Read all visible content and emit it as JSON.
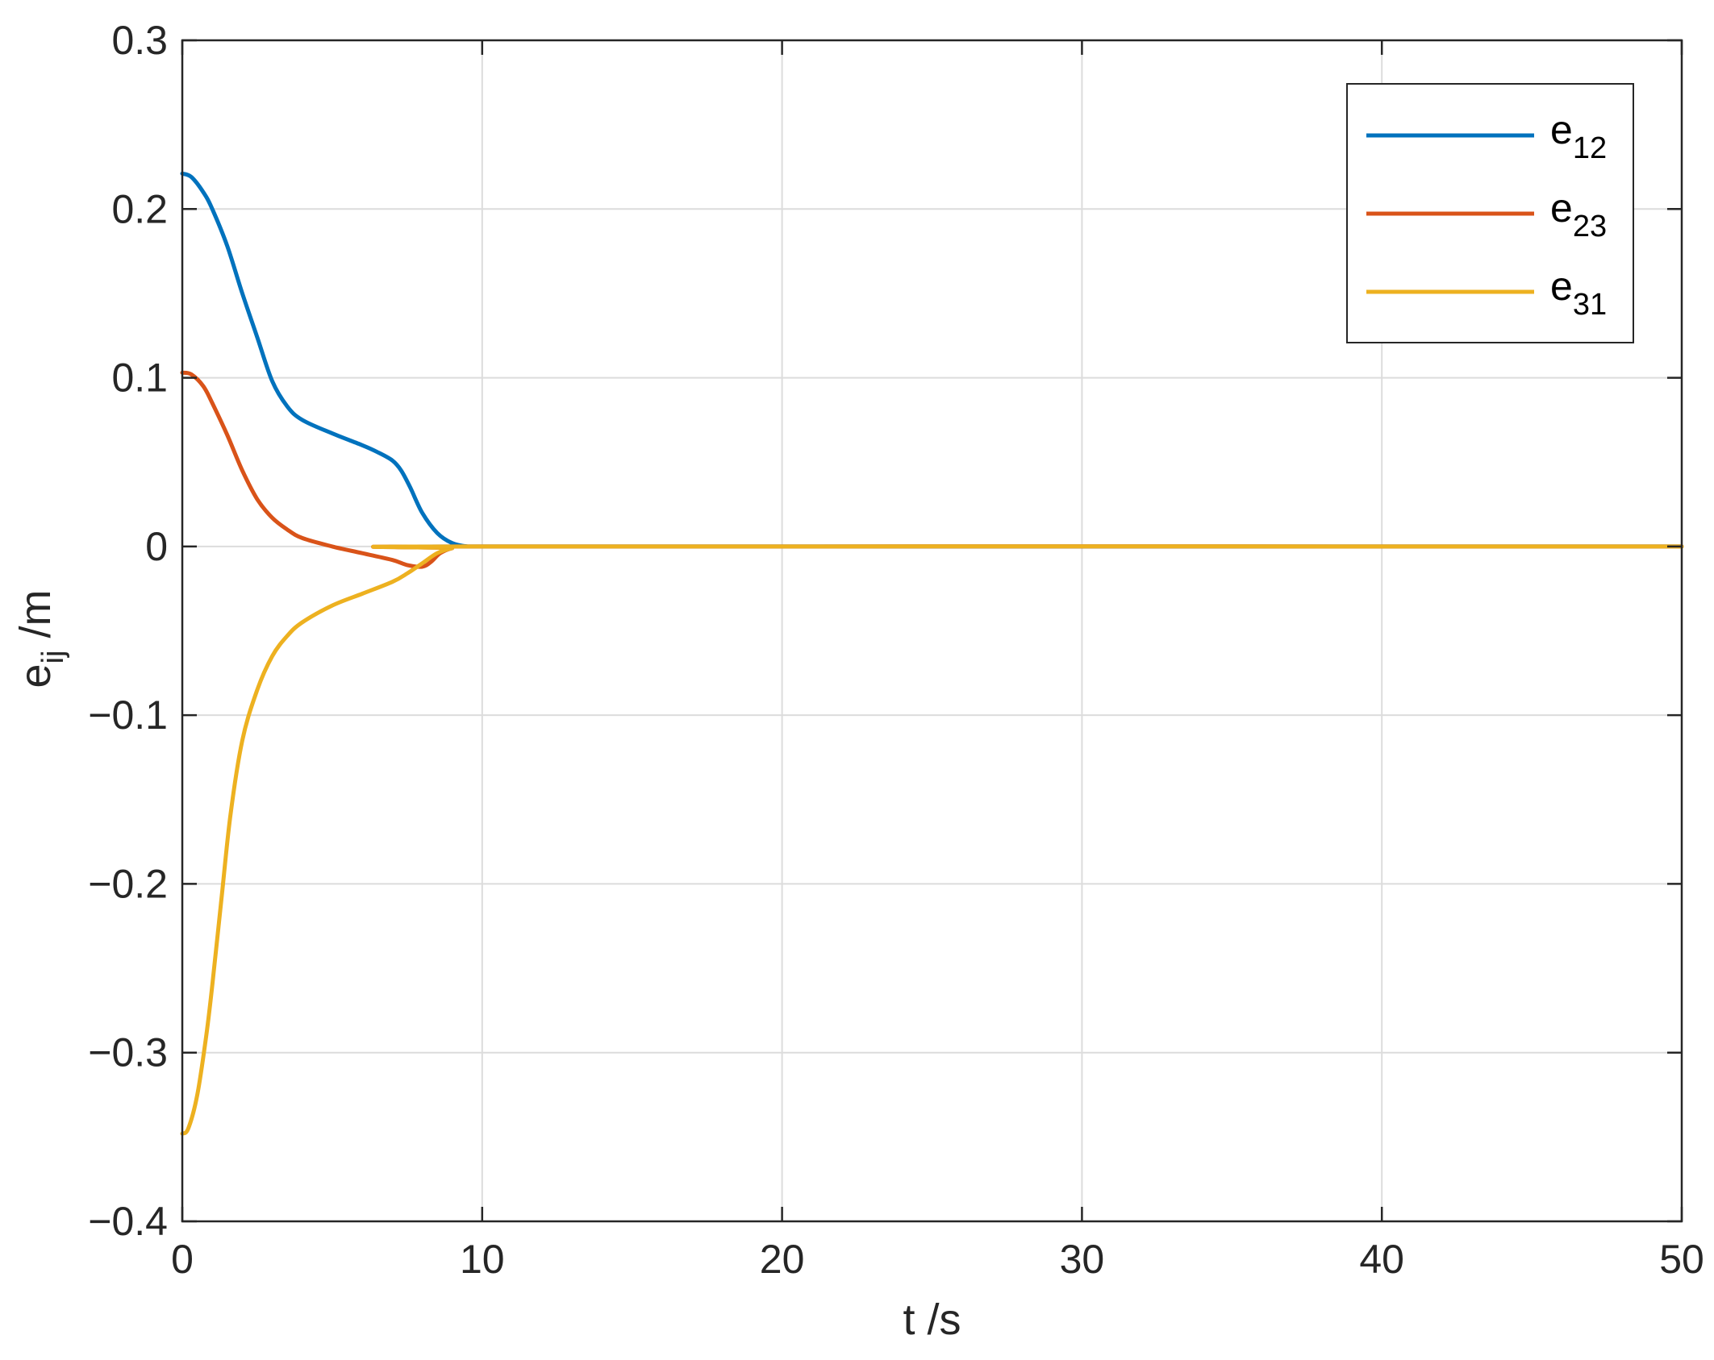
{
  "chart_data": {
    "type": "line",
    "xlabel": "t /s",
    "ylabel": {
      "base": "e",
      "sub": "ij",
      "unit": " /m"
    },
    "xlim": [
      0,
      50
    ],
    "ylim": [
      -0.4,
      0.3
    ],
    "xticks": [
      0,
      10,
      20,
      30,
      40,
      50
    ],
    "yticks": [
      -0.4,
      -0.3,
      -0.2,
      -0.1,
      0,
      0.1,
      0.2,
      0.3
    ],
    "xtick_labels": [
      "0",
      "10",
      "20",
      "30",
      "40",
      "50"
    ],
    "ytick_labels": [
      "−0.4",
      "−0.3",
      "−0.2",
      "−0.1",
      "0",
      "0.1",
      "0.2",
      "0.3"
    ],
    "grid": true,
    "legend_position": "top-right",
    "series": [
      {
        "name": "e12",
        "label_base": "e",
        "label_sub": "12",
        "color": "#0072BD",
        "points": [
          [
            0,
            0.221
          ],
          [
            0.3,
            0.219
          ],
          [
            0.7,
            0.21
          ],
          [
            1,
            0.2
          ],
          [
            1.5,
            0.178
          ],
          [
            2,
            0.15
          ],
          [
            2.5,
            0.124
          ],
          [
            3,
            0.098
          ],
          [
            3.5,
            0.083
          ],
          [
            4,
            0.075
          ],
          [
            5,
            0.067
          ],
          [
            6,
            0.06
          ],
          [
            6.5,
            0.056
          ],
          [
            7,
            0.051
          ],
          [
            7.3,
            0.045
          ],
          [
            7.6,
            0.035
          ],
          [
            8,
            0.02
          ],
          [
            8.5,
            0.008
          ],
          [
            9,
            0.002
          ],
          [
            9.5,
            0.0
          ],
          [
            10,
            0.0
          ],
          [
            50,
            0.0
          ]
        ]
      },
      {
        "name": "e23",
        "label_base": "e",
        "label_sub": "23",
        "color": "#D95319",
        "points": [
          [
            0,
            0.103
          ],
          [
            0.3,
            0.102
          ],
          [
            0.7,
            0.095
          ],
          [
            1,
            0.085
          ],
          [
            1.5,
            0.066
          ],
          [
            2,
            0.045
          ],
          [
            2.5,
            0.028
          ],
          [
            3,
            0.017
          ],
          [
            3.5,
            0.01
          ],
          [
            4,
            0.005
          ],
          [
            5,
            0.0
          ],
          [
            6,
            -0.004
          ],
          [
            7,
            -0.008
          ],
          [
            7.5,
            -0.011
          ],
          [
            8,
            -0.012
          ],
          [
            8.3,
            -0.009
          ],
          [
            8.6,
            -0.004
          ],
          [
            9,
            -0.001
          ],
          [
            9.5,
            0.0
          ],
          [
            50,
            0.0
          ]
        ]
      },
      {
        "name": "e31",
        "label_base": "e",
        "label_sub": "31",
        "color": "#EDB120",
        "points": [
          [
            0,
            -0.348
          ],
          [
            0.2,
            -0.345
          ],
          [
            0.5,
            -0.325
          ],
          [
            0.8,
            -0.29
          ],
          [
            1,
            -0.26
          ],
          [
            1.3,
            -0.21
          ],
          [
            1.6,
            -0.16
          ],
          [
            2,
            -0.115
          ],
          [
            2.5,
            -0.085
          ],
          [
            3,
            -0.065
          ],
          [
            3.5,
            -0.053
          ],
          [
            4,
            -0.045
          ],
          [
            5,
            -0.035
          ],
          [
            6,
            -0.028
          ],
          [
            7,
            -0.021
          ],
          [
            7.5,
            -0.016
          ],
          [
            8,
            -0.01
          ],
          [
            8.5,
            -0.004
          ],
          [
            9,
            -0.001
          ],
          [
            9.5,
            0.0
          ],
          [
            50,
            0.0
          ]
        ]
      }
    ]
  }
}
